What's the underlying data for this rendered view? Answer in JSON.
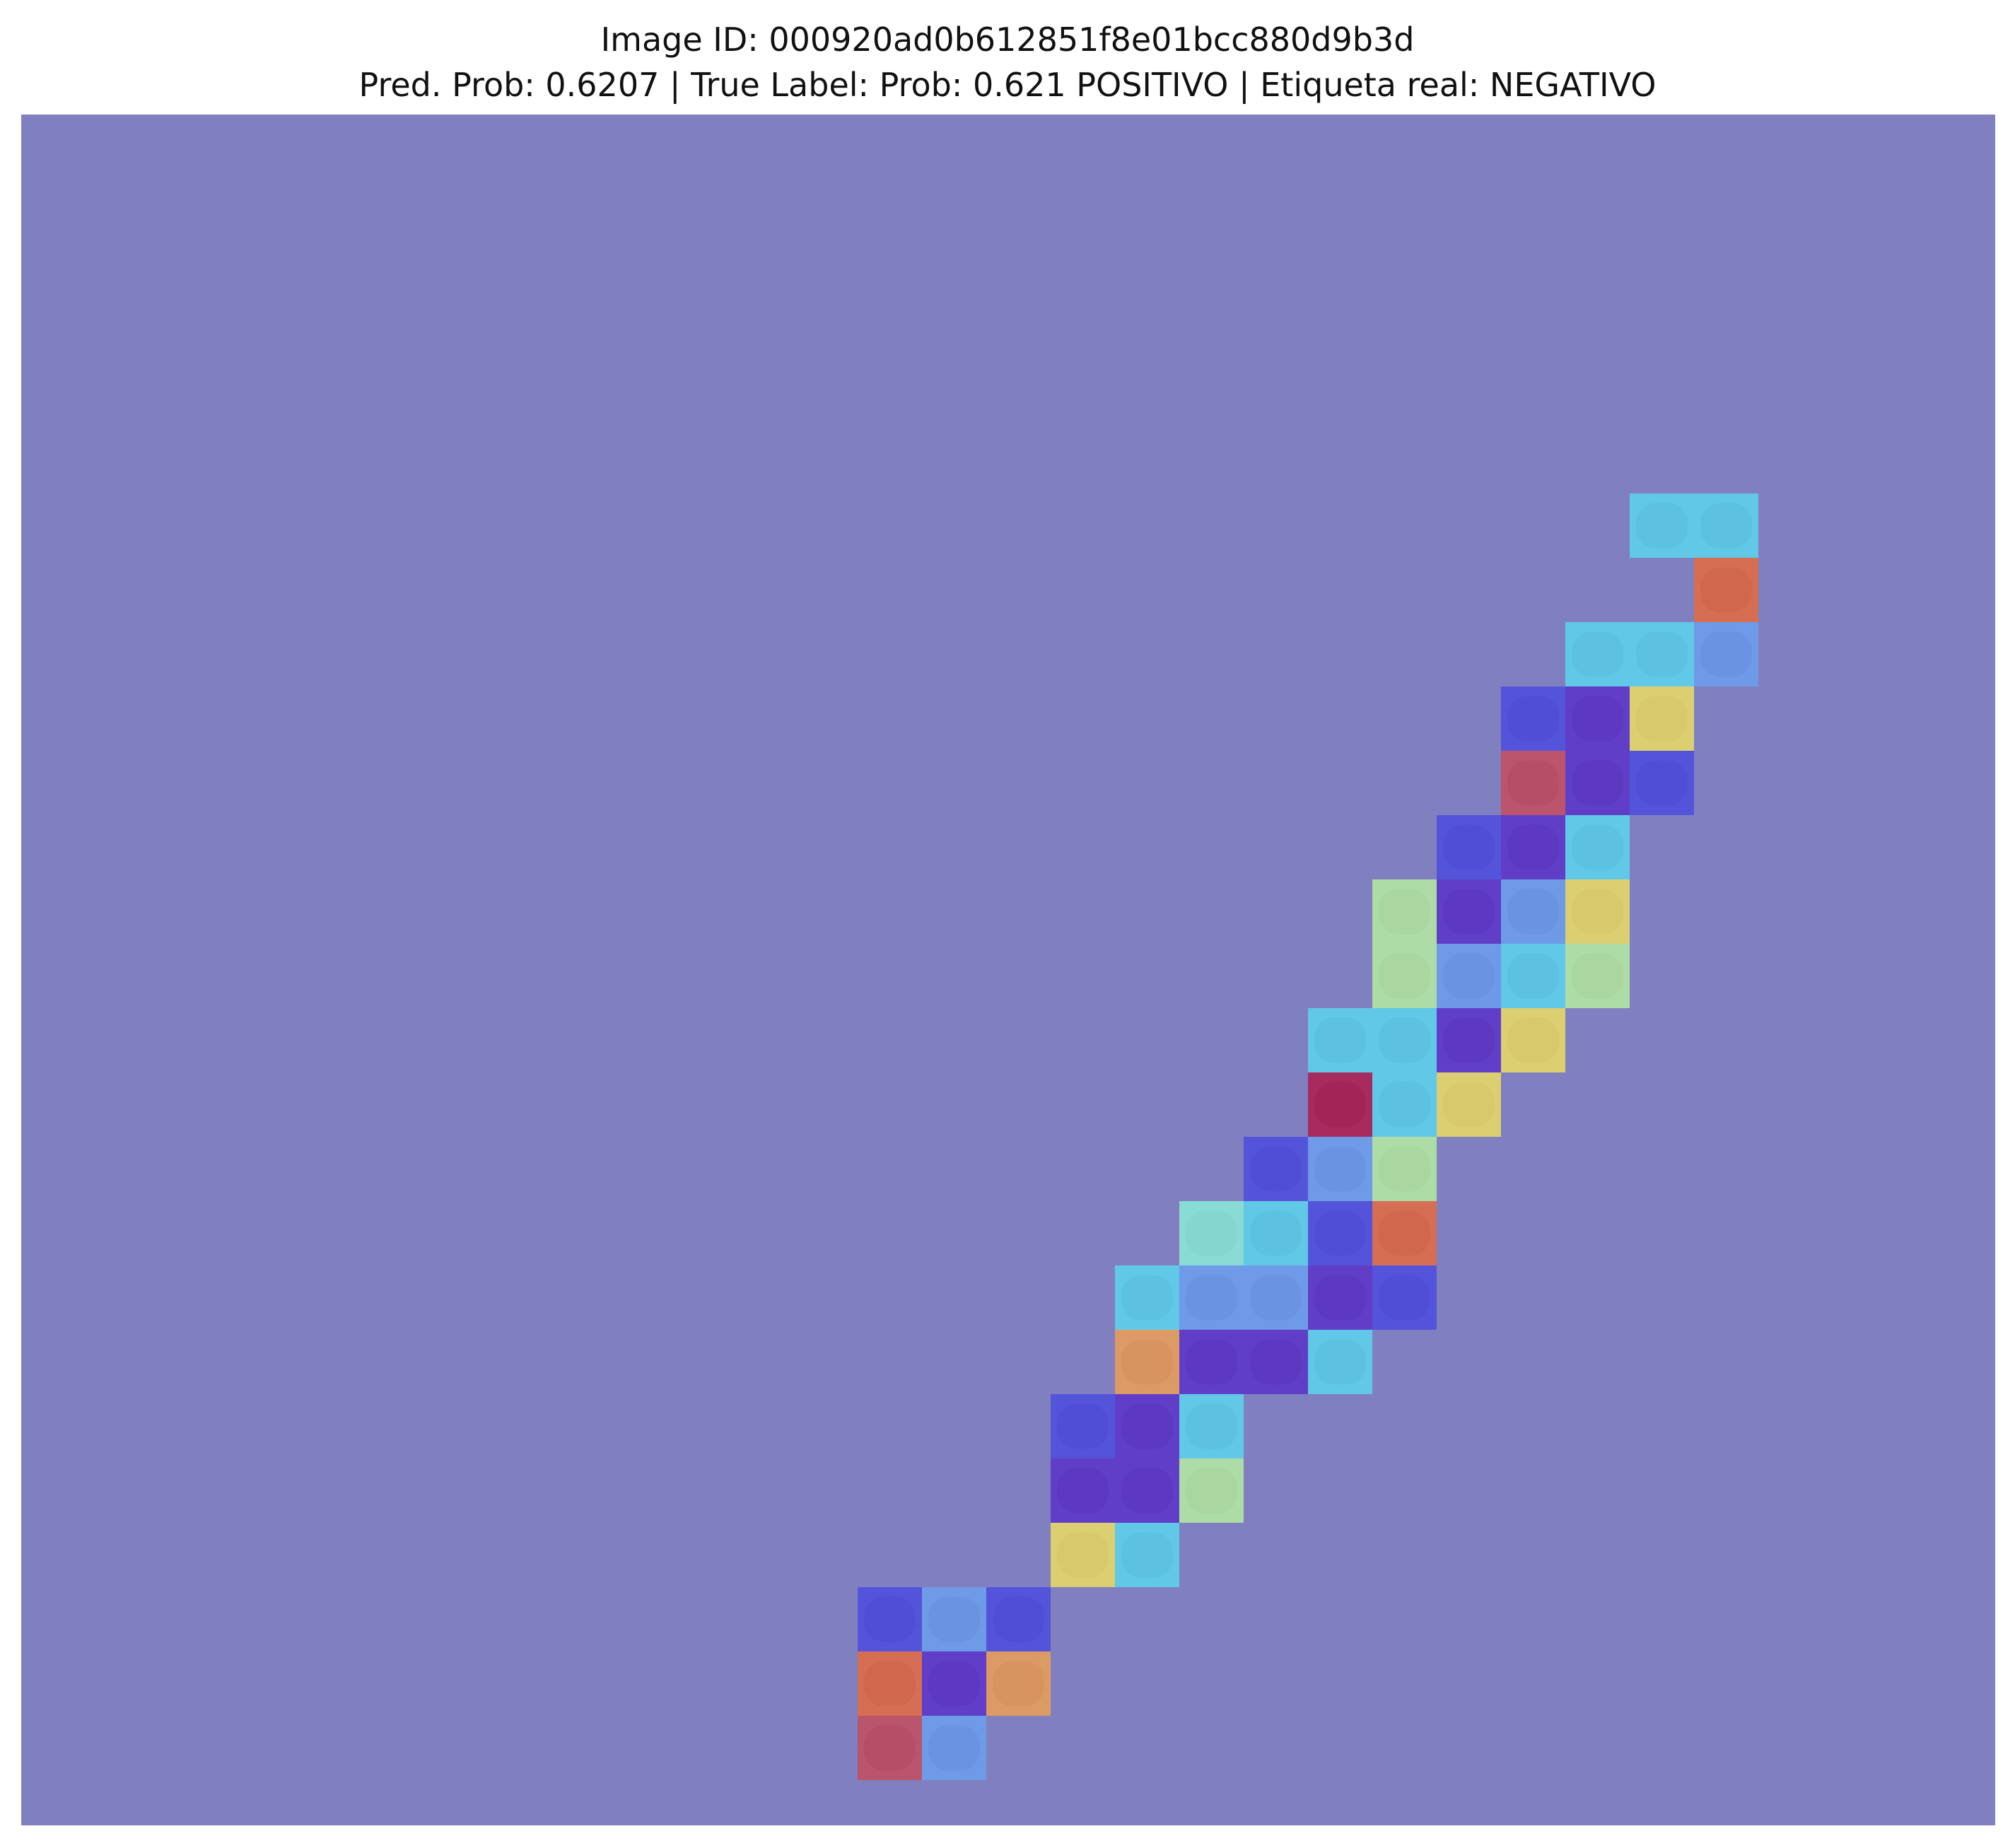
{
  "figure": {
    "title_line_1": "Image ID: 000920ad0b612851f8e01bcc880d9b3d",
    "title_line_2": "Pred. Prob: 0.6207 | True Label: Prob: 0.621 POSITIVO | Etiqueta real: NEGATIVO"
  },
  "colors": {
    "background_overlay": "#8080c0",
    "tissue": "#3b2a6e",
    "tile_palette": {
      "blue": "#4a4ae0",
      "light_blue": "#6aa0f0",
      "cyan": "#5ad8f0",
      "aquamarine": "#8af0d8",
      "light_green": "#b8f0a0",
      "yellow": "#f0e060",
      "orange": "#f0a050",
      "red_orange": "#e86a3a",
      "red": "#c84a5a",
      "dark_red": "#b01848",
      "indigo": "#5a30c8"
    }
  },
  "heatmap": {
    "grid_note": "tile grid over whole-slide thumbnail; coordinates are tile indices (col,row) on a 30x25 grid",
    "tiles": [
      {
        "col": 25,
        "row": 6,
        "color": "cyan"
      },
      {
        "col": 26,
        "row": 6,
        "color": "cyan"
      },
      {
        "col": 26,
        "row": 7,
        "color": "red_orange"
      },
      {
        "col": 24,
        "row": 8,
        "color": "cyan"
      },
      {
        "col": 25,
        "row": 8,
        "color": "cyan"
      },
      {
        "col": 26,
        "row": 8,
        "color": "light_blue"
      },
      {
        "col": 23,
        "row": 9,
        "color": "blue"
      },
      {
        "col": 24,
        "row": 9,
        "color": "indigo"
      },
      {
        "col": 25,
        "row": 9,
        "color": "yellow"
      },
      {
        "col": 23,
        "row": 10,
        "color": "red"
      },
      {
        "col": 24,
        "row": 10,
        "color": "indigo"
      },
      {
        "col": 25,
        "row": 10,
        "color": "blue"
      },
      {
        "col": 22,
        "row": 11,
        "color": "blue"
      },
      {
        "col": 23,
        "row": 11,
        "color": "indigo"
      },
      {
        "col": 24,
        "row": 11,
        "color": "cyan"
      },
      {
        "col": 21,
        "row": 12,
        "color": "light_green"
      },
      {
        "col": 22,
        "row": 12,
        "color": "indigo"
      },
      {
        "col": 23,
        "row": 12,
        "color": "light_blue"
      },
      {
        "col": 24,
        "row": 12,
        "color": "yellow"
      },
      {
        "col": 21,
        "row": 13,
        "color": "light_green"
      },
      {
        "col": 22,
        "row": 13,
        "color": "light_blue"
      },
      {
        "col": 23,
        "row": 13,
        "color": "cyan"
      },
      {
        "col": 24,
        "row": 13,
        "color": "light_green"
      },
      {
        "col": 20,
        "row": 14,
        "color": "cyan"
      },
      {
        "col": 21,
        "row": 14,
        "color": "cyan"
      },
      {
        "col": 22,
        "row": 14,
        "color": "indigo"
      },
      {
        "col": 23,
        "row": 14,
        "color": "yellow"
      },
      {
        "col": 20,
        "row": 15,
        "color": "dark_red"
      },
      {
        "col": 21,
        "row": 15,
        "color": "cyan"
      },
      {
        "col": 22,
        "row": 15,
        "color": "yellow"
      },
      {
        "col": 19,
        "row": 16,
        "color": "blue"
      },
      {
        "col": 20,
        "row": 16,
        "color": "light_blue"
      },
      {
        "col": 21,
        "row": 16,
        "color": "light_green"
      },
      {
        "col": 18,
        "row": 17,
        "color": "aquamarine"
      },
      {
        "col": 19,
        "row": 17,
        "color": "cyan"
      },
      {
        "col": 20,
        "row": 17,
        "color": "blue"
      },
      {
        "col": 21,
        "row": 17,
        "color": "red_orange"
      },
      {
        "col": 17,
        "row": 18,
        "color": "cyan"
      },
      {
        "col": 18,
        "row": 18,
        "color": "light_blue"
      },
      {
        "col": 19,
        "row": 18,
        "color": "light_blue"
      },
      {
        "col": 20,
        "row": 18,
        "color": "indigo"
      },
      {
        "col": 21,
        "row": 18,
        "color": "blue"
      },
      {
        "col": 17,
        "row": 19,
        "color": "orange"
      },
      {
        "col": 18,
        "row": 19,
        "color": "indigo"
      },
      {
        "col": 19,
        "row": 19,
        "color": "indigo"
      },
      {
        "col": 20,
        "row": 19,
        "color": "cyan"
      },
      {
        "col": 16,
        "row": 20,
        "color": "blue"
      },
      {
        "col": 17,
        "row": 20,
        "color": "indigo"
      },
      {
        "col": 18,
        "row": 20,
        "color": "cyan"
      },
      {
        "col": 16,
        "row": 21,
        "color": "indigo"
      },
      {
        "col": 17,
        "row": 21,
        "color": "indigo"
      },
      {
        "col": 18,
        "row": 21,
        "color": "light_green"
      },
      {
        "col": 16,
        "row": 22,
        "color": "yellow"
      },
      {
        "col": 17,
        "row": 22,
        "color": "cyan"
      },
      {
        "col": 13,
        "row": 23,
        "color": "blue"
      },
      {
        "col": 14,
        "row": 23,
        "color": "light_blue"
      },
      {
        "col": 15,
        "row": 23,
        "color": "blue"
      },
      {
        "col": 13,
        "row": 24,
        "color": "red_orange"
      },
      {
        "col": 14,
        "row": 24,
        "color": "indigo"
      },
      {
        "col": 15,
        "row": 24,
        "color": "orange"
      },
      {
        "col": 13,
        "row": 25,
        "color": "red"
      },
      {
        "col": 14,
        "row": 25,
        "color": "light_blue"
      }
    ]
  }
}
